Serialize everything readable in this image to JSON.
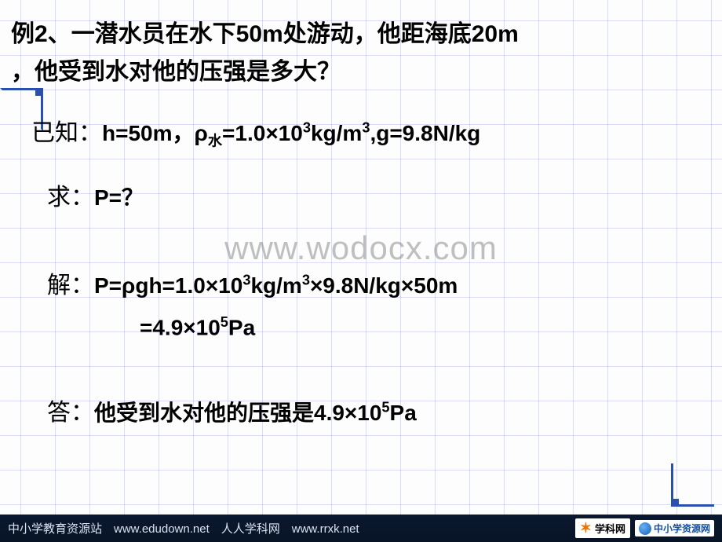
{
  "problem": {
    "label": "例2、",
    "text_line1": "一潜水员在水下50m处游动，他距海底20m",
    "text_line2": "，他受到水对他的压强是多大？"
  },
  "known": {
    "label": "已知：",
    "h": "h=50m",
    "sep1": "，",
    "rho_symbol": "ρ",
    "rho_sub": "水",
    "rho_val": "=1.0×10",
    "rho_exp": "3",
    "rho_unit": "kg/m",
    "rho_unit_exp": "3",
    "g": ",g=9.8N/kg"
  },
  "find": {
    "label": "求：",
    "text": "P=？"
  },
  "watermark": "www.wodocx.com",
  "solve": {
    "label": "解：",
    "eq1_a": "P=ρgh=1.0×10",
    "eq1_exp1": "3",
    "eq1_b": "kg/m",
    "eq1_exp2": "3",
    "eq1_c": "×9.8N/kg×50m",
    "eq2_a": "=4.9×10",
    "eq2_exp": "5",
    "eq2_b": "Pa"
  },
  "answer": {
    "label": "答：",
    "text_a": "他受到水对他的压强是4.9×10",
    "text_exp": "5",
    "text_b": "Pa"
  },
  "footer": {
    "text": "中小学教育资源站　www.edudown.net　人人学科网　www.rrxk.net",
    "logo1": "学科网",
    "logo2": "中小学资源网"
  },
  "colors": {
    "grid": "#6482dc",
    "corner": "#2a4fb0",
    "text": "#000000",
    "watermark": "#888888",
    "footer_bg": "#0a1830",
    "footer_text": "#d8e2f0"
  }
}
